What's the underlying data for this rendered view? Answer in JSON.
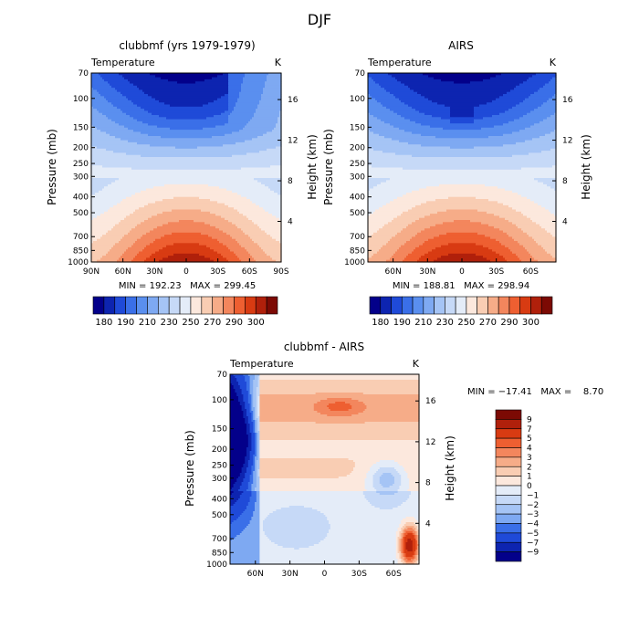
{
  "figure": {
    "title": "DJF"
  },
  "chart_data": [
    {
      "type": "heatmap",
      "title": "clubbmf (yrs 1979-1979)",
      "variable_label": "Temperature",
      "unit_label": "K",
      "ylabel": "Pressure (mb)",
      "ylabel_right": "Height (km)",
      "yticks": [
        "70",
        "100",
        "150",
        "200",
        "250",
        "300",
        "400",
        "500",
        "700",
        "850",
        "1000"
      ],
      "yticks_right": [
        "4",
        "8",
        "12",
        "16"
      ],
      "xticks": [
        "90N",
        "60N",
        "30N",
        "0",
        "30S",
        "60S",
        "90S"
      ],
      "stats": "MIN = 192.23   MAX = 299.45",
      "colorbar_levels": [
        "180",
        "190",
        "210",
        "230",
        "250",
        "270",
        "290",
        "300"
      ],
      "model": "pole_warm"
    },
    {
      "type": "heatmap",
      "title": "AIRS",
      "variable_label": "Temperature",
      "unit_label": "K",
      "ylabel": "Pressure (mb)",
      "ylabel_right": "Height (km)",
      "yticks": [
        "70",
        "100",
        "150",
        "200",
        "250",
        "300",
        "400",
        "500",
        "700",
        "850",
        "1000"
      ],
      "yticks_right": [
        "4",
        "8",
        "12",
        "16"
      ],
      "xticks": [
        "60N",
        "30N",
        "0",
        "30S",
        "60S"
      ],
      "stats": "MIN = 188.81   MAX = 298.94",
      "colorbar_levels": [
        "180",
        "190",
        "210",
        "230",
        "250",
        "270",
        "290",
        "300"
      ],
      "model": "base"
    },
    {
      "type": "heatmap",
      "title": "clubbmf - AIRS",
      "variable_label": "Temperature",
      "unit_label": "K",
      "ylabel": "Pressure (mb)",
      "ylabel_right": "Height (km)",
      "yticks": [
        "70",
        "100",
        "150",
        "200",
        "250",
        "300",
        "400",
        "500",
        "700",
        "850",
        "1000"
      ],
      "yticks_right": [
        "4",
        "8",
        "12",
        "16"
      ],
      "xticks": [
        "60N",
        "30N",
        "0",
        "30S",
        "60S"
      ],
      "stats": "MIN = −17.41   MAX =    8.70",
      "colorbar_levels": [
        "9",
        "7",
        "5",
        "4",
        "3",
        "2",
        "1",
        "0",
        "−1",
        "−2",
        "−3",
        "−4",
        "−5",
        "−7",
        "−9"
      ],
      "model": "diff"
    }
  ],
  "colors": {
    "temp_palette": [
      "#03008a",
      "#0d24b0",
      "#1f4ad8",
      "#3a6fe8",
      "#5a8fef",
      "#7ea9f2",
      "#a5c4f5",
      "#c6d9f7",
      "#e4ecf8",
      "#fce8dd",
      "#f9cdb3",
      "#f6ac88",
      "#f3865d",
      "#ee5f31",
      "#d83b12",
      "#b0200b",
      "#7c0a04"
    ],
    "diff_palette": [
      "#7c0a04",
      "#b0200b",
      "#d83b12",
      "#ee5f31",
      "#f3865d",
      "#f6ac88",
      "#f9cdb3",
      "#fce8dd",
      "#e4ecf8",
      "#c6d9f7",
      "#a5c4f5",
      "#7ea9f2",
      "#3a6fe8",
      "#1f4ad8",
      "#0d24b0",
      "#03008a"
    ]
  }
}
